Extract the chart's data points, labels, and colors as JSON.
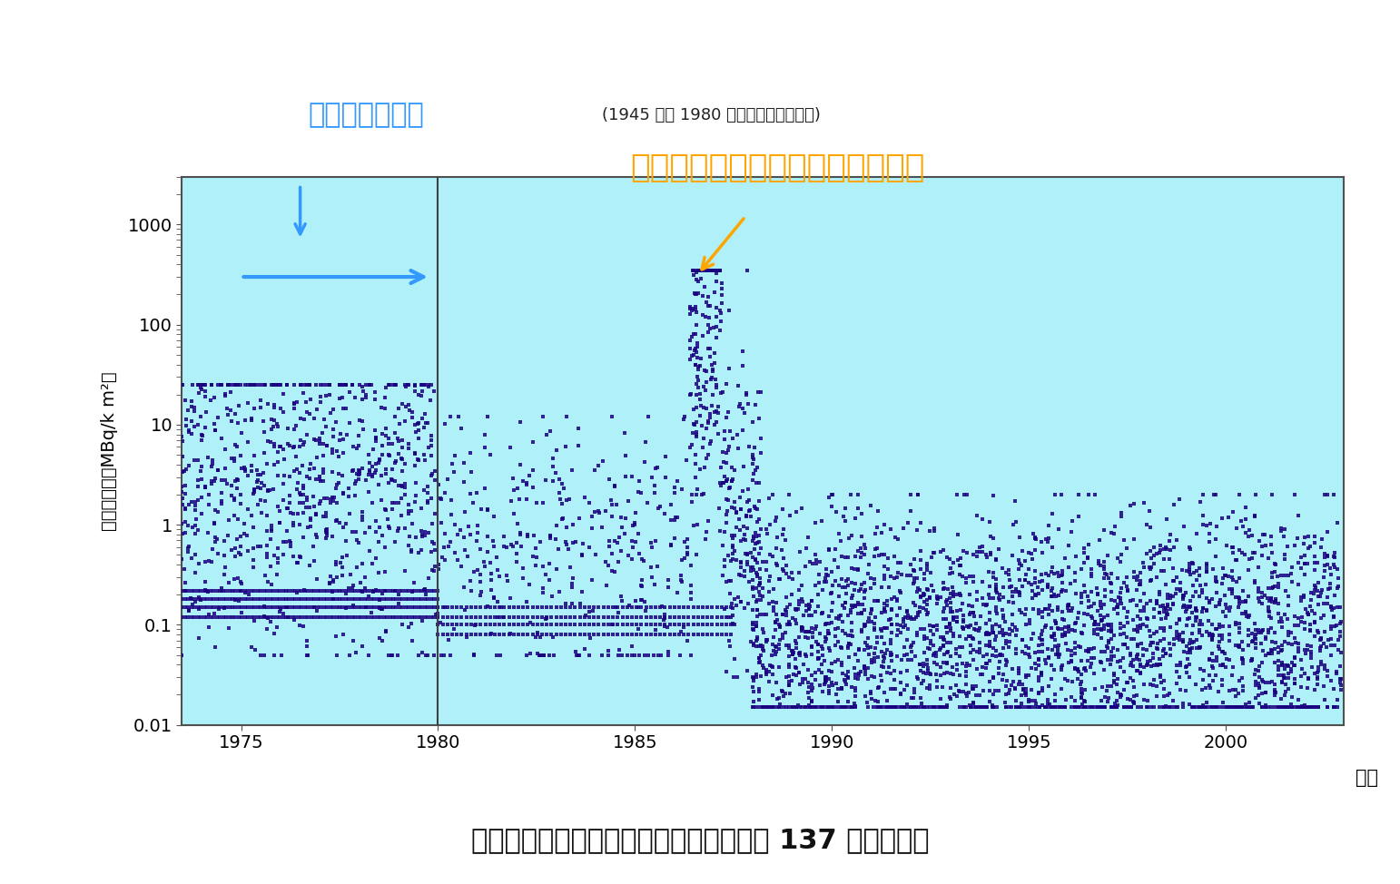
{
  "title": "我が国における雨水・ちり中のセシウム 137 の経年変化",
  "ylabel": "月間降下量（MBq/k m²）",
  "xlabel": "年度",
  "xmin": 1973.5,
  "xmax": 2003.0,
  "ymin": 0.01,
  "ymax": 3000,
  "xticks": [
    1975,
    1980,
    1985,
    1990,
    1995,
    2000
  ],
  "yticks": [
    0.01,
    0.1,
    1,
    10,
    100,
    1000
  ],
  "bg_color": "#b0f0f8",
  "outer_bg": "#ffffff",
  "data_color": "#1a0080",
  "vline_x": 1980,
  "vline_color": "#404040",
  "annotation1_text": "大気圏内核実験",
  "annotation1_sub": "(1945 年〜 1980 年にかけて行われた)",
  "annotation1_color": "#3399ff",
  "annotation2_text": "チェルノブイリ原子力発電所事故",
  "annotation2_color": "#ffa500",
  "chernobyl_year": 1986.5
}
